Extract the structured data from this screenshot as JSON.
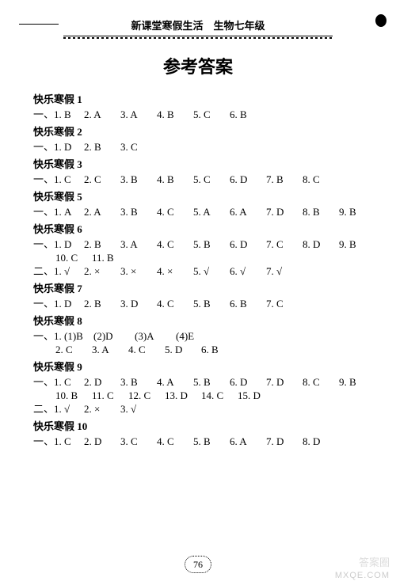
{
  "header": "新课堂寒假生活　生物七年级",
  "title": "参考答案",
  "pageNumber": "76",
  "watermark_cn": "答案圈",
  "watermark_en": "MXQE.COM",
  "sections": [
    {
      "title": "快乐寒假 1",
      "rows": [
        {
          "prefix": "一、",
          "items": [
            "1. B",
            "2. A",
            "3. A",
            "4. B",
            "5. C",
            "6. B"
          ]
        }
      ]
    },
    {
      "title": "快乐寒假 2",
      "rows": [
        {
          "prefix": "一、",
          "items": [
            "1. D",
            "2. B",
            "3. C"
          ]
        }
      ]
    },
    {
      "title": "快乐寒假 3",
      "rows": [
        {
          "prefix": "一、",
          "items": [
            "1. C",
            "2. C",
            "3. B",
            "4. B",
            "5. C",
            "6. D",
            "7. B",
            "8. C"
          ]
        }
      ]
    },
    {
      "title": "快乐寒假 5",
      "rows": [
        {
          "prefix": "一、",
          "items": [
            "1. A",
            "2. A",
            "3. B",
            "4. C",
            "5. A",
            "6. A",
            "7. D",
            "8. B",
            "9. B"
          ]
        }
      ]
    },
    {
      "title": "快乐寒假 6",
      "rows": [
        {
          "prefix": "一、",
          "items": [
            "1. D",
            "2. B",
            "3. A",
            "4. C",
            "5. B",
            "6. D",
            "7. C",
            "8. D",
            "9. B"
          ]
        },
        {
          "prefix": "",
          "indent": true,
          "items": [
            "10. C",
            "11. B"
          ]
        },
        {
          "prefix": "二、",
          "items": [
            "1. √",
            "2. ×",
            "3. ×",
            "4. ×",
            "5. √",
            "6. √",
            "7. √"
          ]
        }
      ]
    },
    {
      "title": "快乐寒假 7",
      "rows": [
        {
          "prefix": "一、",
          "items": [
            "1. D",
            "2. B",
            "3. D",
            "4. C",
            "5. B",
            "6. B",
            "7. C"
          ]
        }
      ]
    },
    {
      "title": "快乐寒假 8",
      "rows": [
        {
          "prefix": "一、",
          "items": [
            "1. (1)B",
            "(2)D",
            "(3)A",
            "(4)E"
          ],
          "widths": [
            76,
            52,
            52,
            52
          ]
        },
        {
          "prefix": "",
          "indent": true,
          "items": [
            "2. C",
            "3. A",
            "4. C",
            "5. D",
            "6. B"
          ]
        }
      ]
    },
    {
      "title": "快乐寒假 9",
      "rows": [
        {
          "prefix": "一、",
          "items": [
            "1. C",
            "2. D",
            "3. B",
            "4. A",
            "5. B",
            "6. D",
            "7. D",
            "8. C",
            "9. B"
          ]
        },
        {
          "prefix": "",
          "indent": true,
          "items": [
            "10. B",
            "11. C",
            "12. C",
            "13. D",
            "14. C",
            "15. D"
          ]
        },
        {
          "prefix": "二、",
          "items": [
            "1. √",
            "2. ×",
            "3. √"
          ]
        }
      ]
    },
    {
      "title": "快乐寒假 10",
      "rows": [
        {
          "prefix": "一、",
          "items": [
            "1. C",
            "2. D",
            "3. C",
            "4. C",
            "5. B",
            "6. A",
            "7. D",
            "8. D"
          ]
        }
      ]
    }
  ]
}
